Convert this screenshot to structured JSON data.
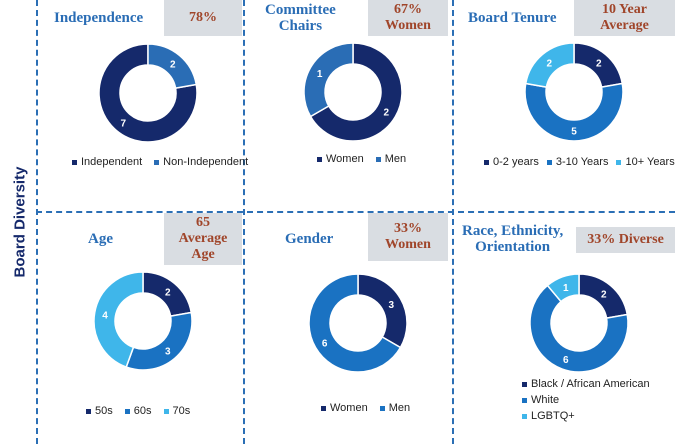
{
  "sidebar": {
    "title": "Board Diversity"
  },
  "panels": [
    {
      "title_lines": [
        "Independence"
      ],
      "badge_lines": [
        "78%"
      ],
      "chart_data": {
        "type": "pie",
        "title": "Independence",
        "categories": [
          "Independent",
          "Non-Independent"
        ],
        "values": [
          7,
          2
        ],
        "colors": [
          "#15296b",
          "#2a6db5"
        ],
        "start_count": 2
      }
    },
    {
      "title_lines": [
        "Committee",
        "Chairs"
      ],
      "badge_lines": [
        "67%",
        "Women"
      ],
      "chart_data": {
        "type": "pie",
        "title": "Committee Chairs",
        "categories": [
          "Women",
          "Men"
        ],
        "values": [
          2,
          1
        ],
        "colors": [
          "#15296b",
          "#2a6db5"
        ],
        "start_count": 0
      }
    },
    {
      "title_lines": [
        "Board Tenure"
      ],
      "badge_lines": [
        "10 Year",
        "Average"
      ],
      "chart_data": {
        "type": "pie",
        "title": "Board Tenure",
        "categories": [
          "0-2 years",
          "3-10 Years",
          "10+ Years"
        ],
        "values": [
          2,
          5,
          2
        ],
        "colors": [
          "#15296b",
          "#1a72c2",
          "#3fb6ea"
        ],
        "start_count": 0
      }
    },
    {
      "title_lines": [
        "Age"
      ],
      "badge_lines": [
        "65",
        "Average",
        "Age"
      ],
      "chart_data": {
        "type": "pie",
        "title": "Age",
        "categories": [
          "50s",
          "60s",
          "70s"
        ],
        "values": [
          2,
          3,
          4
        ],
        "colors": [
          "#15296b",
          "#1a72c2",
          "#3fb6ea"
        ],
        "start_count": 0
      }
    },
    {
      "title_lines": [
        "Gender"
      ],
      "badge_lines": [
        "33%",
        "Women"
      ],
      "chart_data": {
        "type": "pie",
        "title": "Gender",
        "categories": [
          "Women",
          "Men"
        ],
        "values": [
          3,
          6
        ],
        "colors": [
          "#15296b",
          "#1a72c2"
        ],
        "start_count": 0
      }
    },
    {
      "title_lines": [
        "Race, Ethnicity,",
        "Orientation"
      ],
      "badge_lines": [
        "33% Diverse"
      ],
      "chart_data": {
        "type": "pie",
        "title": "Race, Ethnicity, Orientation",
        "categories": [
          "Black / African American",
          "White",
          "LGBTQ+"
        ],
        "values": [
          2,
          6,
          1
        ],
        "colors": [
          "#15296b",
          "#1a72c2",
          "#3fb6ea"
        ],
        "start_count": 0
      }
    }
  ]
}
